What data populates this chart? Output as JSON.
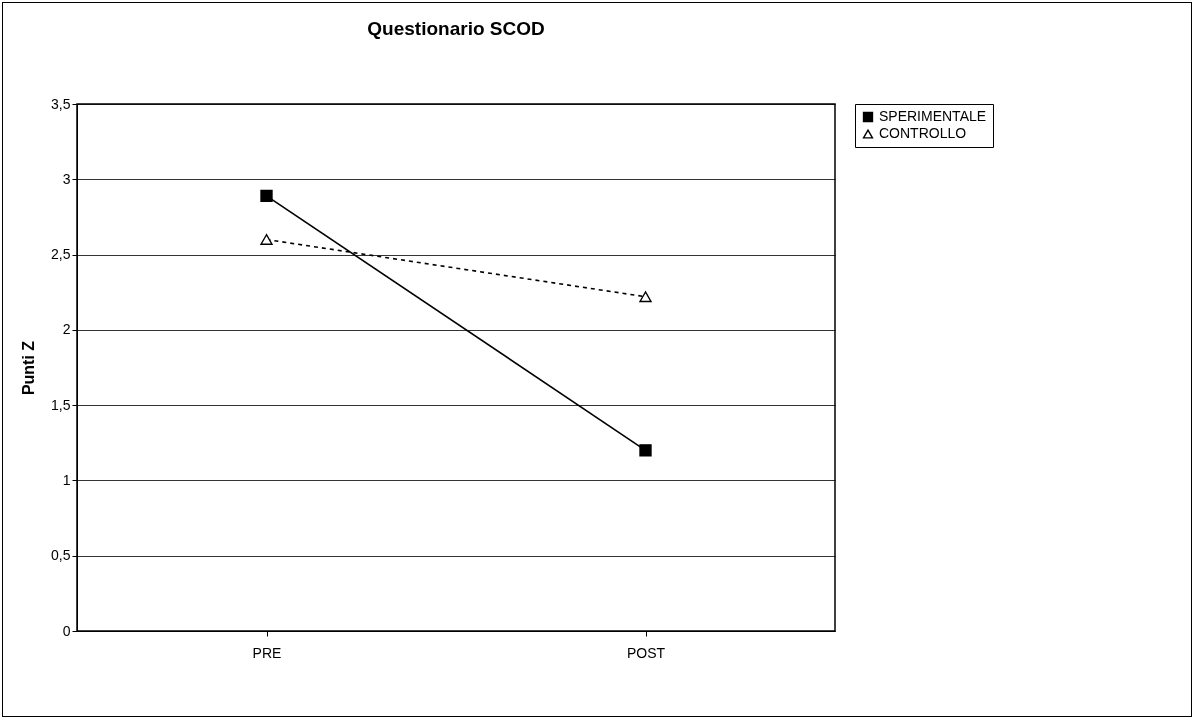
{
  "chart_data": {
    "type": "line",
    "title": "Questionario SCOD",
    "ylabel": "Punti Z",
    "categories": [
      "PRE",
      "POST"
    ],
    "series": [
      {
        "name": "SPERIMENTALE",
        "color": "#000000",
        "values": [
          2.89,
          1.2
        ],
        "marker": "square",
        "line_style": "solid"
      },
      {
        "name": "CONTROLLO",
        "color": "#000000",
        "values": [
          2.6,
          2.22
        ],
        "marker": "triangle",
        "line_style": "dashed"
      }
    ],
    "ylim": [
      0,
      3.5
    ],
    "yticks": [
      0,
      {
        "value": 0.5,
        "label": "0,5"
      },
      1,
      {
        "value": 1.5,
        "label": "1,5"
      },
      2,
      {
        "value": 2.5,
        "label": "2,5"
      },
      3,
      {
        "value": 3.5,
        "label": "3,5"
      }
    ],
    "grid": "y",
    "legend": "right"
  }
}
